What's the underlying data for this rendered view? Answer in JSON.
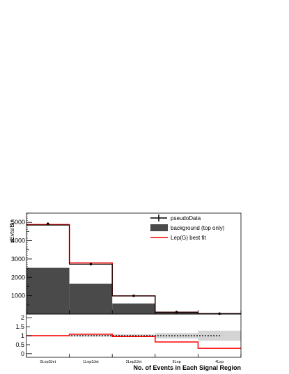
{
  "chart_data": {
    "type": "bar",
    "ylabel": "#Evts/Bin",
    "xlabel": "No. of Events in Each Signal Region",
    "categories": [
      "0Lep3Jet",
      "1Lep3Jet",
      "2Lep2Jet",
      "3Lep",
      "4Lep"
    ],
    "ylim": [
      0,
      5500
    ],
    "yticks": [
      1000,
      2000,
      3000,
      4000,
      5000
    ],
    "legend": [
      "pseudoData",
      "background (top only)",
      "Lep(G) best fit"
    ],
    "legend_placement": "top-right",
    "series": [
      {
        "name": "pseudoData",
        "style": "points-with-errors",
        "values": [
          4920,
          2720,
          1000,
          110,
          25
        ],
        "errors": [
          70,
          52,
          32,
          10,
          5
        ]
      },
      {
        "name": "background (top only)",
        "style": "filled-histogram",
        "values": [
          2520,
          1650,
          580,
          90,
          20
        ]
      },
      {
        "name": "Lep(G) best fit",
        "style": "step-line",
        "values": [
          4880,
          2790,
          990,
          105,
          30
        ]
      },
      {
        "name": "",
        "style": "step-line",
        "values": [
          4850,
          2720,
          990,
          105,
          30
        ]
      }
    ],
    "ratio_panel": {
      "ylim": [
        -0.2,
        2.2
      ],
      "yticks": [
        0,
        0.5,
        1,
        1.5,
        2
      ],
      "ytick_labels": [
        "0",
        "0.5",
        "1",
        "1.5",
        "2"
      ],
      "model_ratio": [
        1.0,
        1.08,
        0.95,
        0.65,
        0.3
      ],
      "reference_ratio": [
        1.0,
        1.0,
        1.0,
        1.0,
        1.0
      ],
      "band_low": [
        0.98,
        0.95,
        0.92,
        0.85,
        0.72
      ],
      "band_high": [
        1.02,
        1.05,
        1.08,
        1.15,
        1.28
      ]
    },
    "colors": {
      "data": "#000000",
      "background": "#4a4a4a",
      "fit": "#ff0000",
      "band": "#d4d4d4"
    }
  }
}
